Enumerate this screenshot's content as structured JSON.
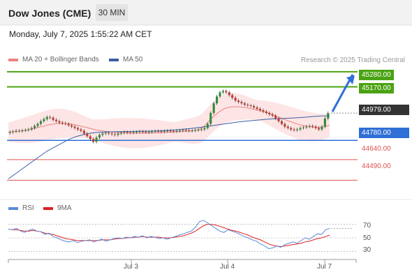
{
  "header": {
    "instrument": "Dow Jones (CME)",
    "timeframe": "30 MIN"
  },
  "datetime": "Monday, July 7, 2025 1:55:22 AM CET",
  "legend": {
    "ma20_bb": {
      "label": "MA 20 + Bollinger Bands",
      "color": "#f08080"
    },
    "ma50": {
      "label": "MA 50",
      "color": "#3a5ea8"
    },
    "rsi": {
      "label": "RSI",
      "color": "#5b8ad8"
    },
    "rsi9ma": {
      "label": "9MA",
      "color": "#e02020"
    }
  },
  "credit": "Research © 2025 Trading Central",
  "levels": {
    "r2": {
      "label": "45280.00",
      "value": 45280,
      "color": "#4aa312"
    },
    "r1": {
      "label": "45170.00",
      "value": 45170,
      "color": "#4aa312"
    },
    "current": {
      "label": "44979.00",
      "value": 44979,
      "color": "#333333"
    },
    "pivot": {
      "label": "44780.00",
      "value": 44780,
      "color": "#2f6fd6"
    },
    "s1": {
      "label": "44640.00",
      "value": 44640,
      "color": "#e05050"
    },
    "s2": {
      "label": "44490.00",
      "value": 44490,
      "color": "#e05050"
    }
  },
  "x_labels": [
    "Jul 3",
    "Jul 4",
    "Jul 7"
  ],
  "rsi_labels": [
    "70",
    "50",
    "30"
  ],
  "chart_data": {
    "type": "line",
    "title": "Dow Jones (CME)",
    "timeframe": "30 MIN",
    "price_ylim": [
      44380,
      45320
    ],
    "rsi_ylim": [
      20,
      80
    ],
    "price_close": [
      44840,
      44845,
      44850,
      44848,
      44852,
      44855,
      44860,
      44870,
      44885,
      44900,
      44920,
      44935,
      44950,
      44945,
      44930,
      44920,
      44910,
      44905,
      44900,
      44890,
      44880,
      44870,
      44860,
      44850,
      44830,
      44810,
      44790,
      44770,
      44800,
      44820,
      44830,
      44835,
      44830,
      44825,
      44820,
      44830,
      44835,
      44840,
      44838,
      44836,
      44840,
      44842,
      44845,
      44843,
      44840,
      44842,
      44845,
      44848,
      44846,
      44845,
      44848,
      44850,
      44848,
      44846,
      44850,
      44852,
      44855,
      44853,
      44850,
      44852,
      44855,
      44858,
      44860,
      44870,
      44900,
      44980,
      45050,
      45100,
      45130,
      45140,
      45130,
      45110,
      45090,
      45070,
      45060,
      45050,
      45040,
      45035,
      45030,
      45020,
      45010,
      45000,
      44990,
      44980,
      44970,
      44960,
      44940,
      44920,
      44900,
      44880,
      44870,
      44860,
      44855,
      44860,
      44870,
      44875,
      44880,
      44885,
      44880,
      44870,
      44860,
      44880,
      44940,
      44979
    ],
    "ma20": [
      44840,
      44843,
      44846,
      44850,
      44855,
      44860,
      44868,
      44876,
      44884,
      44892,
      44898,
      44902,
      44904,
      44903,
      44900,
      44895,
      44888,
      44880,
      44872,
      44864,
      44856,
      44850,
      44846,
      44843,
      44840,
      44838,
      44836,
      44834,
      44833,
      44832,
      44832,
      44832,
      44833,
      44834,
      44835,
      44836,
      44838,
      44840,
      44842,
      44844,
      44846,
      44848,
      44850,
      44856,
      44870,
      44900,
      44935,
      44965,
      44990,
      45010,
      45020,
      45025,
      45025,
      45022,
      45018,
      45012,
      45005,
      44998,
      44990,
      44980,
      44968,
      44955,
      44942,
      44930,
      44918,
      44906,
      44896,
      44888,
      44882,
      44878,
      44876,
      44878,
      44882,
      44890
    ],
    "ma50": [
      44500,
      44540,
      44580,
      44620,
      44660,
      44700,
      44730,
      44760,
      44790,
      44810,
      44825,
      44835,
      44840,
      44842,
      44843,
      44844,
      44845,
      44846,
      44847,
      44848,
      44850,
      44853,
      44857,
      44862,
      44868,
      44875,
      44882,
      44890,
      44898,
      44906,
      44914,
      44920,
      44925,
      44930,
      44935,
      44938,
      44940,
      44943,
      44946,
      44950,
      44955,
      44958,
      44960
    ],
    "rsi": [
      63,
      62,
      64,
      60,
      58,
      61,
      63,
      60,
      59,
      55,
      57,
      52,
      50,
      47,
      45,
      44,
      46,
      43,
      45,
      46,
      47,
      44,
      46,
      48,
      45,
      47,
      49,
      50,
      49,
      51,
      50,
      52,
      51,
      53,
      50,
      52,
      51,
      49,
      50,
      48,
      50,
      52,
      54,
      56,
      58,
      60,
      66,
      74,
      76,
      72,
      68,
      64,
      60,
      58,
      62,
      60,
      58,
      55,
      52,
      50,
      47,
      45,
      41,
      38,
      34,
      35,
      38,
      36,
      40,
      42,
      44,
      42,
      46,
      50,
      48,
      52,
      56,
      55,
      62,
      64
    ],
    "rsi_9ma": [
      63,
      62,
      62,
      61,
      60,
      60,
      61,
      60,
      59,
      57,
      56,
      55,
      53,
      51,
      49,
      48,
      47,
      46,
      46,
      46,
      46,
      46,
      46,
      47,
      47,
      47,
      48,
      49,
      49,
      50,
      50,
      51,
      51,
      52,
      51,
      51,
      51,
      51,
      50,
      50,
      50,
      51,
      52,
      53,
      55,
      57,
      60,
      64,
      68,
      70,
      70,
      69,
      67,
      65,
      63,
      61,
      60,
      58,
      56,
      54,
      51,
      49,
      47,
      44,
      41,
      39,
      38,
      37,
      38,
      39,
      40,
      41,
      42,
      44,
      45,
      47,
      49,
      50,
      52,
      54
    ]
  }
}
